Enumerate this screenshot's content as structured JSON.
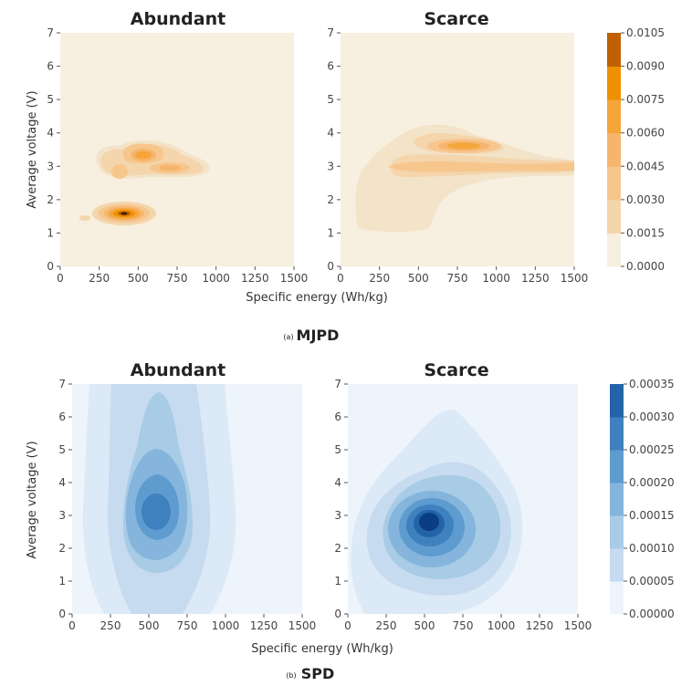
{
  "figure_a": {
    "caption_prefix": "(a)",
    "caption": "MJPD",
    "xlabel": "Specific energy (Wh/kg)",
    "ylabel": "Average voltage (V)",
    "colorbar_ticks": [
      "0.0000",
      "0.0015",
      "0.0030",
      "0.0045",
      "0.0060",
      "0.0075",
      "0.0090",
      "0.0105"
    ]
  },
  "figure_b": {
    "caption_prefix": "(b)",
    "caption": "SPD",
    "xlabel": "Specific energy (Wh/kg)",
    "ylabel": "Average voltage (V)",
    "colorbar_ticks": [
      "0.00000",
      "0.00005",
      "0.00010",
      "0.00015",
      "0.00020",
      "0.00025",
      "0.00030",
      "0.00035"
    ]
  },
  "colors": {
    "orange_levels": [
      "#f7efdf",
      "#f3e3c8",
      "#f4d5ac",
      "#f6c68d",
      "#f6b56d",
      "#f5a53a",
      "#ef9000",
      "#c06000",
      "#5a2a08"
    ],
    "blue_levels": [
      "#eef4fb",
      "#dce9f6",
      "#c6dbef",
      "#a8cbe6",
      "#85b5dc",
      "#5e9ccf",
      "#3f81bf",
      "#2364a9",
      "#0a3d83"
    ]
  },
  "chart_data": [
    {
      "type": "heatmap",
      "title": "Abundant",
      "figure": "a",
      "xlabel": "Specific energy (Wh/kg)",
      "ylabel": "Average voltage (V)",
      "xlim": [
        0,
        1500
      ],
      "ylim": [
        0,
        7
      ],
      "xticks": [
        0,
        250,
        500,
        750,
        1000,
        1250,
        1500
      ],
      "yticks": [
        0,
        1,
        2,
        3,
        4,
        5,
        6,
        7
      ],
      "colormap": "orange",
      "vmin": 0,
      "vmax": 0.0105,
      "levels": [
        0.0015,
        0.003,
        0.0045,
        0.006,
        0.0075,
        0.009
      ],
      "peaks": [
        {
          "x": 430,
          "y": 1.55,
          "density": 0.0105
        },
        {
          "x": 520,
          "y": 3.35,
          "density": 0.0062
        },
        {
          "x": 710,
          "y": 2.95,
          "density": 0.0048
        },
        {
          "x": 390,
          "y": 2.85,
          "density": 0.004
        },
        {
          "x": 150,
          "y": 1.45,
          "density": 0.0028
        }
      ]
    },
    {
      "type": "heatmap",
      "title": "Scarce",
      "figure": "a",
      "xlabel": "Specific energy (Wh/kg)",
      "ylabel": "",
      "xlim": [
        0,
        1500
      ],
      "ylim": [
        0,
        7
      ],
      "xticks": [
        0,
        250,
        500,
        750,
        1000,
        1250,
        1500
      ],
      "yticks": [
        0,
        1,
        2,
        3,
        4,
        5,
        6,
        7
      ],
      "colormap": "orange",
      "vmin": 0,
      "vmax": 0.0105,
      "levels": [
        0.0015,
        0.003,
        0.0045,
        0.006
      ],
      "peaks": [
        {
          "x": 790,
          "y": 3.55,
          "density": 0.0065
        },
        {
          "x": 700,
          "y": 2.95,
          "density": 0.004
        },
        {
          "x": 1250,
          "y": 3.0,
          "density": 0.004
        },
        {
          "x": 400,
          "y": 2.8,
          "density": 0.0022
        }
      ]
    },
    {
      "type": "heatmap",
      "title": "Abundant",
      "figure": "b",
      "xlabel": "Specific energy (Wh/kg)",
      "ylabel": "Average voltage (V)",
      "xlim": [
        0,
        1500
      ],
      "ylim": [
        0,
        7
      ],
      "xticks": [
        0,
        250,
        500,
        750,
        1000,
        1250,
        1500
      ],
      "yticks": [
        0,
        1,
        2,
        3,
        4,
        5,
        6,
        7
      ],
      "colormap": "blue",
      "vmin": 0,
      "vmax": 0.00035,
      "levels": [
        5e-05,
        0.0001,
        0.00015,
        0.0002
      ],
      "peaks": [
        {
          "x": 560,
          "y": 3.1,
          "density": 0.00021
        }
      ]
    },
    {
      "type": "heatmap",
      "title": "Scarce",
      "figure": "b",
      "xlabel": "Specific energy (Wh/kg)",
      "ylabel": "",
      "xlim": [
        0,
        1500
      ],
      "ylim": [
        0,
        7
      ],
      "xticks": [
        0,
        250,
        500,
        750,
        1000,
        1250,
        1500
      ],
      "yticks": [
        0,
        1,
        2,
        3,
        4,
        5,
        6,
        7
      ],
      "colormap": "blue",
      "vmin": 0,
      "vmax": 0.00035,
      "levels": [
        5e-05,
        0.0001,
        0.00015,
        0.0002,
        0.00025,
        0.0003
      ],
      "peaks": [
        {
          "x": 540,
          "y": 2.85,
          "density": 0.00033
        }
      ]
    }
  ]
}
